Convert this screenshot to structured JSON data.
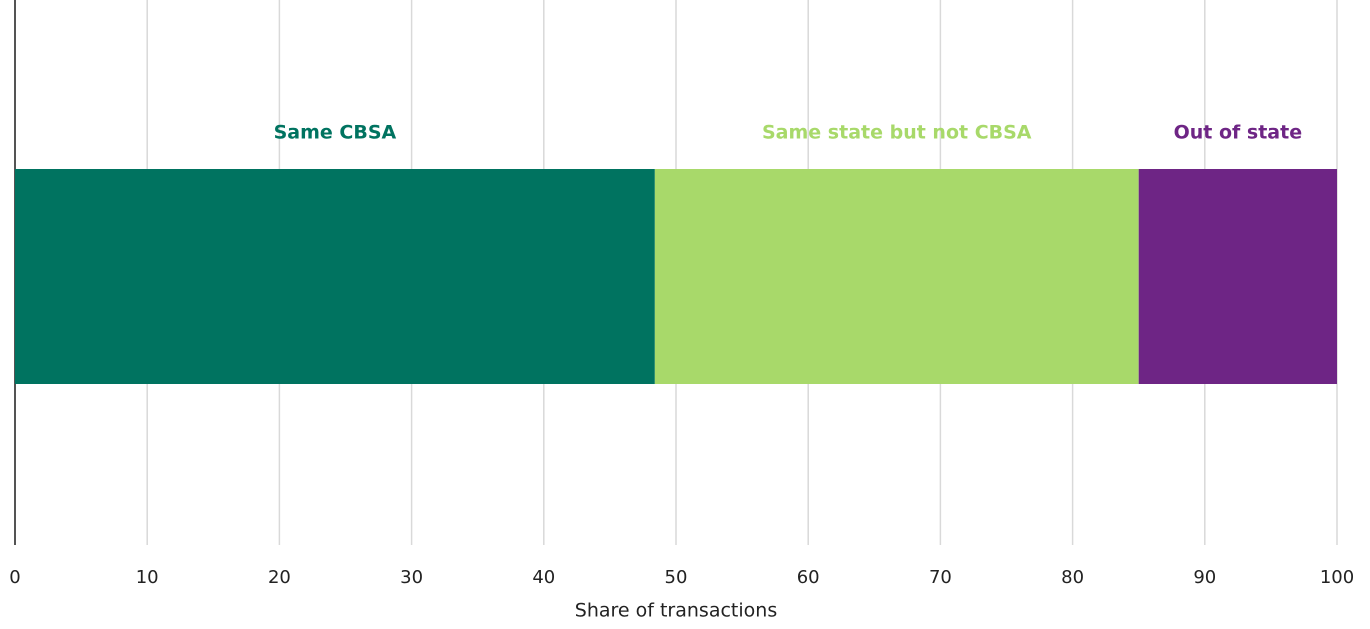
{
  "chart_data": {
    "type": "bar",
    "orientation": "horizontal",
    "stacked": true,
    "x_label": "Share of transactions",
    "categories": [
      null
    ],
    "series": [
      {
        "name": "Same CBSA",
        "color": "#007360",
        "values": [
          48.4
        ]
      },
      {
        "name": "Same state but not CBSA",
        "color": "#a8d96a",
        "values": [
          36.6
        ]
      },
      {
        "name": "Out of state",
        "color": "#6e2585",
        "values": [
          15.0
        ]
      }
    ],
    "xlim": [
      0,
      100
    ],
    "xticks": [
      0,
      10,
      20,
      30,
      40,
      50,
      60,
      70,
      80,
      90,
      100
    ],
    "grid": true
  }
}
